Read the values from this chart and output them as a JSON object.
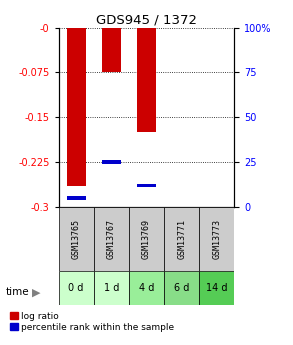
{
  "title": "GDS945 / 1372",
  "categories": [
    "GSM13765",
    "GSM13767",
    "GSM13769",
    "GSM13771",
    "GSM13773"
  ],
  "time_labels": [
    "0 d",
    "1 d",
    "4 d",
    "6 d",
    "14 d"
  ],
  "log_ratio": [
    -0.265,
    -0.075,
    -0.175,
    0.0,
    0.0
  ],
  "percentile_rank": [
    5.0,
    25.0,
    12.0,
    0.0,
    0.0
  ],
  "ylim_left": [
    -0.3,
    0.0
  ],
  "ylim_right": [
    0,
    100
  ],
  "yticks_left": [
    0.0,
    -0.075,
    -0.15,
    -0.225,
    -0.3
  ],
  "yticks_right": [
    0,
    25,
    50,
    75,
    100
  ],
  "bar_color": "#cc0000",
  "percentile_color": "#0000cc",
  "bar_width": 0.55,
  "gsm_bg_color": "#cccccc",
  "time_bg_colors": [
    "#ccffcc",
    "#ccffcc",
    "#99ee99",
    "#88dd88",
    "#55cc55"
  ],
  "title_fontsize": 9.5,
  "tick_fontsize": 7,
  "legend_fontsize": 6.5
}
